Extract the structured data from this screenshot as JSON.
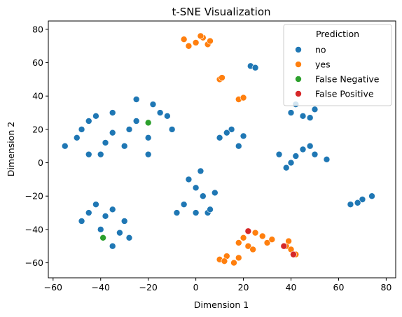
{
  "chart_data": {
    "type": "scatter",
    "title": "t-SNE Visualization",
    "xlabel": "Dimension 1",
    "ylabel": "Dimension 2",
    "xlim": [
      -62,
      84
    ],
    "ylim": [
      -69,
      85
    ],
    "xticks": [
      -60,
      -40,
      -20,
      0,
      20,
      40,
      60,
      80
    ],
    "yticks": [
      -60,
      -40,
      -20,
      0,
      20,
      40,
      60,
      80
    ],
    "grid": false,
    "legend": {
      "title": "Prediction",
      "placement": "top-right",
      "entries": [
        {
          "name": "no",
          "color": "#1f77b4"
        },
        {
          "name": "yes",
          "color": "#ff7f0e"
        },
        {
          "name": "False Negative",
          "color": "#2ca02c"
        },
        {
          "name": "False Positive",
          "color": "#d62728"
        }
      ]
    },
    "series": [
      {
        "name": "no",
        "color": "#1f77b4",
        "points": [
          [
            -50,
            15
          ],
          [
            -45,
            25
          ],
          [
            -40,
            5
          ],
          [
            -35,
            30
          ],
          [
            -30,
            10
          ],
          [
            -25,
            25
          ],
          [
            -20,
            15
          ],
          [
            -15,
            30
          ],
          [
            -10,
            20
          ],
          [
            -55,
            10
          ],
          [
            -45,
            5
          ],
          [
            -35,
            18
          ],
          [
            -25,
            38
          ],
          [
            -20,
            5
          ],
          [
            -12,
            28
          ],
          [
            -48,
            20
          ],
          [
            -38,
            12
          ],
          [
            -28,
            20
          ],
          [
            -18,
            35
          ],
          [
            -42,
            28
          ],
          [
            -45,
            -30
          ],
          [
            -40,
            -40
          ],
          [
            -35,
            -50
          ],
          [
            -30,
            -35
          ],
          [
            -28,
            -45
          ],
          [
            -42,
            -25
          ],
          [
            -38,
            -32
          ],
          [
            -32,
            -42
          ],
          [
            -48,
            -35
          ],
          [
            -35,
            -28
          ],
          [
            -5,
            -25
          ],
          [
            0,
            -15
          ],
          [
            5,
            -30
          ],
          [
            3,
            -20
          ],
          [
            -3,
            -10
          ],
          [
            8,
            -18
          ],
          [
            -8,
            -30
          ],
          [
            2,
            -5
          ],
          [
            6,
            -28
          ],
          [
            0,
            -30
          ],
          [
            10,
            15
          ],
          [
            15,
            20
          ],
          [
            18,
            10
          ],
          [
            13,
            18
          ],
          [
            20,
            16
          ],
          [
            35,
            5
          ],
          [
            40,
            0
          ],
          [
            45,
            8
          ],
          [
            50,
            5
          ],
          [
            55,
            2
          ],
          [
            38,
            -3
          ],
          [
            48,
            10
          ],
          [
            42,
            4
          ],
          [
            40,
            30
          ],
          [
            45,
            28
          ],
          [
            50,
            32
          ],
          [
            48,
            27
          ],
          [
            42,
            35
          ],
          [
            23,
            58
          ],
          [
            25,
            57
          ],
          [
            65,
            -25
          ],
          [
            70,
            -22
          ],
          [
            74,
            -20
          ],
          [
            68,
            -24
          ]
        ]
      },
      {
        "name": "yes",
        "color": "#ff7f0e",
        "points": [
          [
            -5,
            74
          ],
          [
            0,
            72
          ],
          [
            3,
            75
          ],
          [
            5,
            71
          ],
          [
            -3,
            70
          ],
          [
            2,
            76
          ],
          [
            6,
            73
          ],
          [
            10,
            50
          ],
          [
            11,
            51
          ],
          [
            18,
            38
          ],
          [
            20,
            39
          ],
          [
            20,
            -45
          ],
          [
            25,
            -42
          ],
          [
            30,
            -48
          ],
          [
            22,
            -50
          ],
          [
            28,
            -44
          ],
          [
            18,
            -48
          ],
          [
            32,
            -46
          ],
          [
            24,
            -52
          ],
          [
            10,
            -58
          ],
          [
            13,
            -56
          ],
          [
            16,
            -60
          ],
          [
            18,
            -57
          ],
          [
            12,
            -59
          ],
          [
            38,
            -50
          ],
          [
            40,
            -52
          ],
          [
            42,
            -55
          ],
          [
            39,
            -47
          ]
        ]
      },
      {
        "name": "False Negative",
        "color": "#2ca02c",
        "points": [
          [
            -39,
            -45
          ],
          [
            -20,
            24
          ]
        ]
      },
      {
        "name": "False Positive",
        "color": "#d62728",
        "points": [
          [
            22,
            -41
          ],
          [
            37,
            -50
          ],
          [
            41,
            -55
          ]
        ]
      }
    ]
  }
}
